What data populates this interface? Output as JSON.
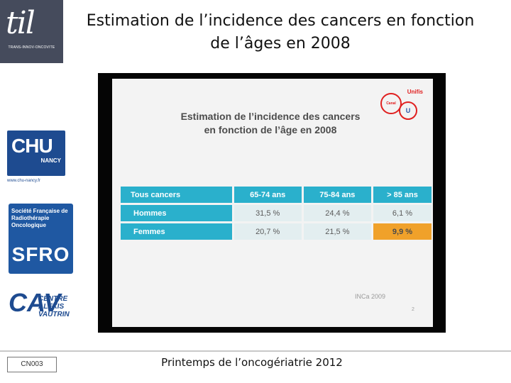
{
  "header": {
    "title_line1": "Estimation de l’incidence des cancers en fonction",
    "title_line2": "de l’âges en 2008"
  },
  "logos": {
    "til": {
      "mark": "til",
      "tagline": "TRANS-INNOV-ONCOVITE"
    },
    "chu": {
      "name": "CHU",
      "city": "NANCY",
      "url": "www.chu-nancy.fr"
    },
    "sfro": {
      "society": "Société Française de Radiothérapie Oncologique",
      "abbr": "SFRO"
    },
    "cav": {
      "mark": "CAV",
      "line1": "CENTRE",
      "line2": "ALEXIS",
      "line3": "VAUTRIN"
    }
  },
  "slide": {
    "title_line1": "Estimation de l’incidence des cancers",
    "title_line2": "en fonction de l’âge en 2008",
    "badges": {
      "unifis": "Unifis",
      "canal": "Canal",
      "u": "U"
    },
    "table": {
      "columns": [
        "Tous cancers",
        "65-74 ans",
        "75-84 ans",
        "> 85 ans"
      ],
      "rows": [
        {
          "label": "Hommes",
          "values": [
            "31,5 %",
            "24,4 %",
            "6,1 %"
          ]
        },
        {
          "label": "Femmes",
          "values": [
            "20,7 %",
            "21,5 %",
            "9,9 %"
          ]
        }
      ],
      "highlight_color": "#f0a12a"
    },
    "source": "INCa 2009",
    "page_number": "2"
  },
  "footer": {
    "code": "CN003",
    "text": "Printemps de l’oncogériatrie 2012"
  }
}
